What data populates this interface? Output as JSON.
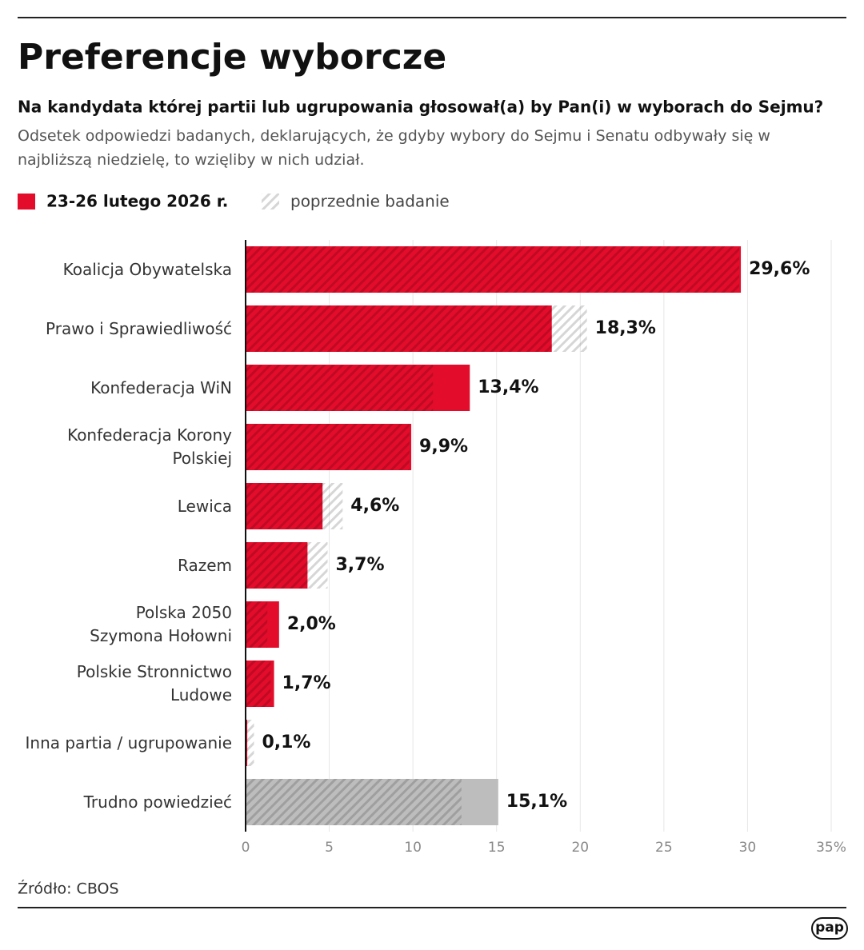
{
  "chart_data": {
    "type": "bar",
    "title": "Preferencje wyborcze",
    "subtitle": "Na kandydata której partii lub ugrupowania głosował(a) by Pan(i) w wyborach do Sejmu?",
    "description": "Odsetek odpowiedzi badanych, deklarujących, że gdyby wybory do Sejmu i Senatu odbywały się w najbliższą niedzielę, to wzięliby w nich udział.",
    "categories": [
      "Koalicja Obywatelska",
      "Prawo i Sprawiedliwość",
      "Konfederacja WiN",
      "Konfederacja Korony\nPolskiej",
      "Lewica",
      "Razem",
      "Polska 2050\nSzymona Hołowni",
      "Polskie Stronnictwo\nLudowe",
      "Inna partia / ugrupowanie",
      "Trudno powiedzieć"
    ],
    "series": [
      {
        "name": "23-26 lutego 2026 r.",
        "color": "#e30c2a",
        "colors": [
          "#e30c2a",
          "#e30c2a",
          "#e30c2a",
          "#e30c2a",
          "#e30c2a",
          "#e30c2a",
          "#e30c2a",
          "#e30c2a",
          "#e30c2a",
          "#bdbdbd"
        ],
        "values": [
          29.6,
          18.3,
          13.4,
          9.9,
          4.6,
          3.7,
          2.0,
          1.7,
          0.1,
          15.1
        ],
        "value_labels": [
          "29,6%",
          "18,3%",
          "13,4%",
          "9,9%",
          "4,6%",
          "3,7%",
          "2,0%",
          "1,7%",
          "0,1%",
          "15,1%"
        ]
      },
      {
        "name": "poprzednie badanie",
        "color": "#bdbdbd",
        "values": [
          29.5,
          20.4,
          11.2,
          9.8,
          5.8,
          4.9,
          1.3,
          1.5,
          0.5,
          12.9
        ]
      }
    ],
    "xlim": [
      0,
      35
    ],
    "xticks": [
      0,
      5,
      10,
      15,
      20,
      25,
      30,
      {
        "value": 35,
        "label": "35%"
      }
    ],
    "grid": true,
    "source": "Źródło: CBOS",
    "logo": "pap"
  }
}
